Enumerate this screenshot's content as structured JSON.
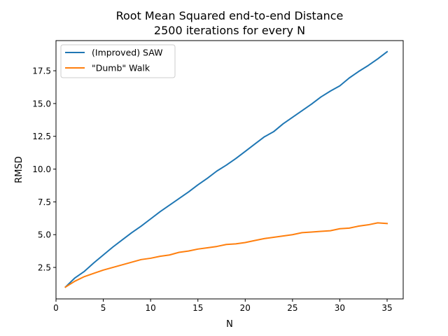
{
  "chart_data": {
    "type": "line",
    "title_line1": "Root Mean Squared end-to-end Distance",
    "title_line2": "2500 iterations for every N",
    "xlabel": "N",
    "ylabel": "RMSD",
    "xlim": [
      0,
      36.7
    ],
    "ylim": [
      0.1,
      19.8
    ],
    "xticks": [
      0,
      5,
      10,
      15,
      20,
      25,
      30,
      35
    ],
    "xtick_labels": [
      "0",
      "5",
      "10",
      "15",
      "20",
      "25",
      "30",
      "35"
    ],
    "yticks": [
      2.5,
      5.0,
      7.5,
      10.0,
      12.5,
      15.0,
      17.5
    ],
    "ytick_labels": [
      "2.5",
      "5.0",
      "7.5",
      "10.0",
      "12.5",
      "15.0",
      "17.5"
    ],
    "grid": false,
    "legend_position": "upper-left",
    "x": [
      1,
      2,
      3,
      4,
      5,
      6,
      7,
      8,
      9,
      10,
      11,
      12,
      13,
      14,
      15,
      16,
      17,
      18,
      19,
      20,
      21,
      22,
      23,
      24,
      25,
      26,
      27,
      28,
      29,
      30,
      31,
      32,
      33,
      34,
      35
    ],
    "series": [
      {
        "name": "(Improved) SAW",
        "color": "#1f77b4",
        "values": [
          1.0,
          1.7,
          2.2,
          2.85,
          3.45,
          4.05,
          4.6,
          5.15,
          5.65,
          6.2,
          6.75,
          7.25,
          7.75,
          8.25,
          8.8,
          9.3,
          9.85,
          10.3,
          10.8,
          11.35,
          11.9,
          12.45,
          12.85,
          13.45,
          13.95,
          14.45,
          14.95,
          15.5,
          15.95,
          16.35,
          16.95,
          17.45,
          17.9,
          18.4,
          18.95
        ]
      },
      {
        "name": "\"Dumb\" Walk",
        "color": "#ff7f0e",
        "values": [
          1.0,
          1.45,
          1.8,
          2.05,
          2.3,
          2.5,
          2.7,
          2.9,
          3.1,
          3.2,
          3.35,
          3.45,
          3.65,
          3.75,
          3.9,
          4.0,
          4.1,
          4.25,
          4.3,
          4.4,
          4.55,
          4.7,
          4.8,
          4.9,
          5.0,
          5.15,
          5.2,
          5.25,
          5.3,
          5.45,
          5.5,
          5.65,
          5.75,
          5.9,
          5.85
        ]
      }
    ]
  }
}
